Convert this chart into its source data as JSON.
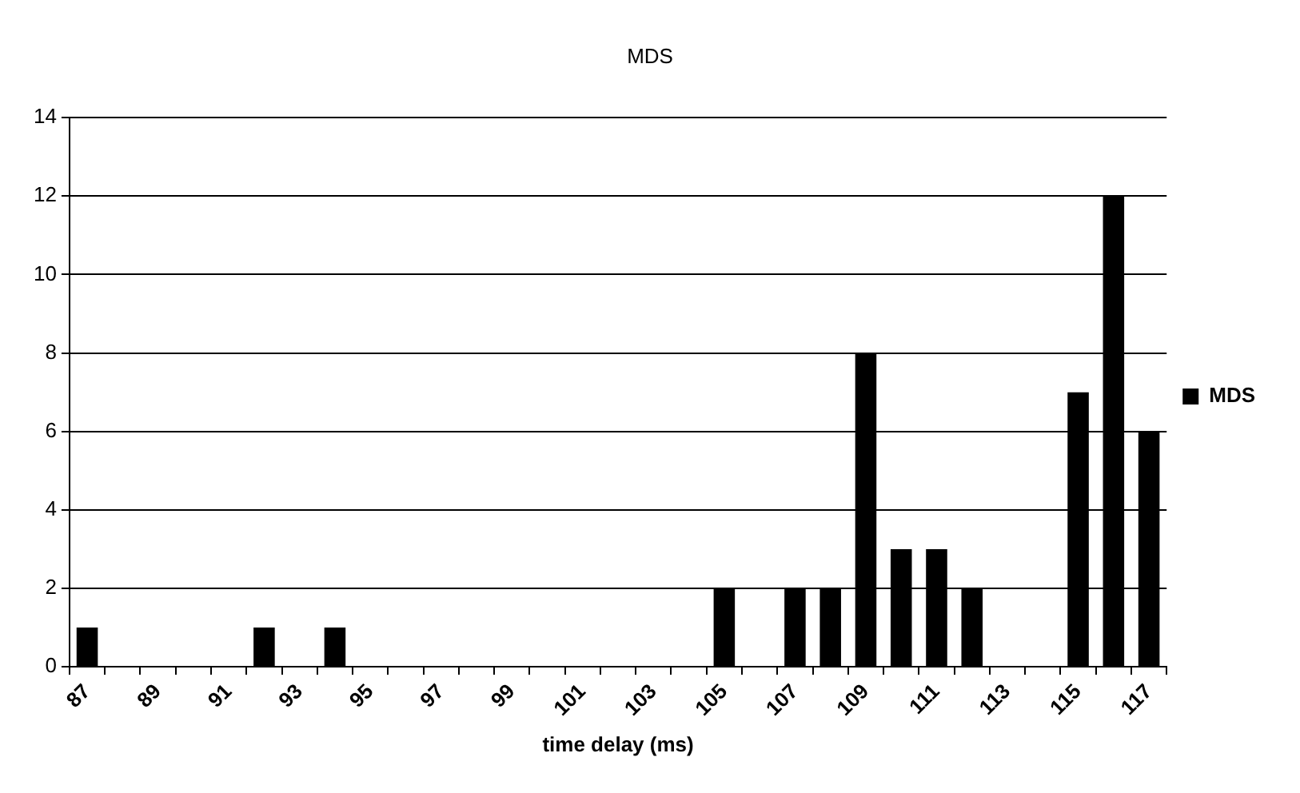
{
  "chart_data": {
    "type": "bar",
    "title": "MDS",
    "xlabel": "time delay (ms)",
    "categories": [
      "87",
      null,
      "89",
      null,
      "91",
      null,
      "93",
      null,
      "95",
      null,
      "97",
      null,
      "99",
      null,
      "101",
      null,
      "103",
      null,
      "105",
      null,
      "107",
      null,
      "109",
      null,
      "111",
      null,
      "113",
      null,
      "115",
      null,
      "117"
    ],
    "series": [
      {
        "name": "MDS",
        "color": "#000000",
        "values": [
          1,
          0,
          0,
          0,
          0,
          1,
          0,
          1,
          0,
          0,
          0,
          0,
          0,
          0,
          0,
          0,
          0,
          0,
          2,
          0,
          2,
          2,
          8,
          3,
          3,
          2,
          0,
          0,
          7,
          12,
          6
        ]
      }
    ],
    "ylim": [
      0,
      14
    ],
    "yticks": [
      0,
      2,
      4,
      6,
      8,
      10,
      12,
      14
    ],
    "grid": "y",
    "legend": "right"
  }
}
